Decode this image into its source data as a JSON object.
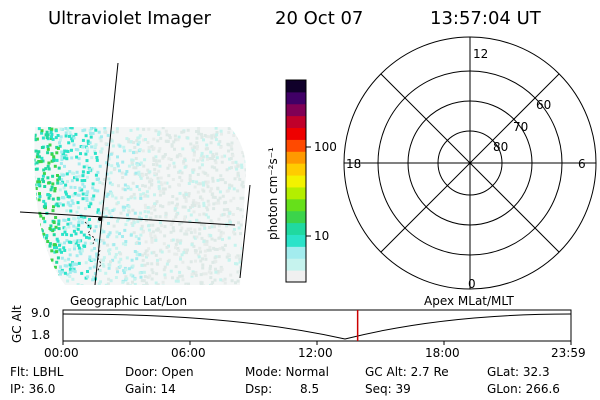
{
  "header": {
    "title": "Ultraviolet Imager",
    "date": "20 Oct 07",
    "time": "13:57:04 UT"
  },
  "colorbar": {
    "unit_label": "photon cm⁻²s⁻¹",
    "ticks": [
      "100",
      "10"
    ],
    "colors": [
      "#f0f0f0",
      "#c6f3ee",
      "#a3ecee",
      "#2be3c9",
      "#20d9a0",
      "#3bd44b",
      "#66e01a",
      "#b4ee00",
      "#f3f200",
      "#ffcc00",
      "#ff9900",
      "#ff4a00",
      "#ee0000",
      "#c0002a",
      "#800055",
      "#400066",
      "#10002a"
    ]
  },
  "polar_plot": {
    "mlt_labels": [
      "12",
      "18",
      "6",
      "0"
    ],
    "lat_labels": [
      "60",
      "70",
      "80"
    ]
  },
  "timeline": {
    "y_label": "GC Alt",
    "y_ticks": [
      "9.0",
      "1.8"
    ],
    "left_caption": "Geographic Lat/Lon",
    "right_caption": "Apex MLat/MLT",
    "x_ticks": [
      "00:00",
      "06:00",
      "12:00",
      "18:00",
      "23:59"
    ],
    "current_time_fraction": 0.58,
    "marker_color": "#cc0000"
  },
  "footer": {
    "flt": "Flt: LBHL",
    "door": "Door: Open",
    "mode": "Mode: Normal",
    "gc_alt": "GC Alt: 2.7 Re",
    "glat": "GLat:  32.3",
    "ip": "IP: 36.0",
    "gain": "Gain: 14",
    "dsp_label": "Dsp:",
    "dsp_value": "8.5",
    "seq": "Seq: 39",
    "glon": "GLon: 266.6"
  }
}
